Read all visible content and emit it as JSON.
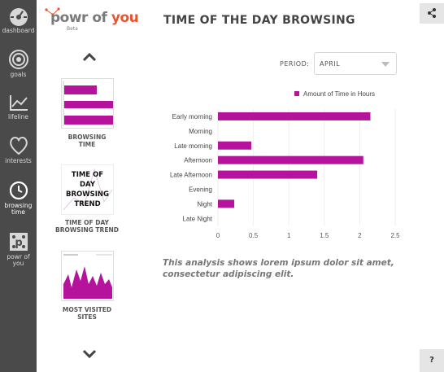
{
  "sidebar": {
    "items": [
      {
        "label": "dashboard",
        "icon": "dashboard-icon"
      },
      {
        "label": "goals",
        "icon": "target-icon"
      },
      {
        "label": "lifeline",
        "icon": "line-chart-icon"
      },
      {
        "label": "interests",
        "icon": "heart-icon"
      },
      {
        "label_1": "browsing",
        "label_2": "time",
        "icon": "clock-icon"
      },
      {
        "label_1": "powr of",
        "label_2": "you",
        "icon": "powr-logo-icon"
      }
    ]
  },
  "logo": {
    "text_main": "powr of ",
    "text_accent": "you",
    "beta": "Beta"
  },
  "header": {
    "title": "TIME OF THE DAY BROWSING"
  },
  "thumbnails": [
    {
      "label_1": "BROWSING",
      "label_2": "TIME"
    },
    {
      "overlay_1": "TIME OF",
      "overlay_2": "DAY",
      "overlay_3": "BROWSING",
      "overlay_4": "TREND",
      "label_1": "TIME OF DAY",
      "label_2": "BROWSING TREND"
    },
    {
      "label_1": "MOST VISITED",
      "label_2": "SITES"
    }
  ],
  "period": {
    "label": "PERIOD:",
    "value": "APRIL"
  },
  "help": {
    "label": "?"
  },
  "colors": {
    "bar": "#b5139b",
    "sidebar": "#4a4a4a",
    "accent": "#e8542e"
  },
  "chart_data": {
    "type": "bar",
    "orientation": "horizontal",
    "title": "",
    "legend": "Amount of Time in Hours",
    "categories": [
      "Early morning",
      "Morning",
      "Late morning",
      "Afternoon",
      "Late Afternoon",
      "Evening",
      "Night",
      "Late Night"
    ],
    "values": [
      2.15,
      0,
      0.47,
      2.05,
      1.4,
      0,
      0.23,
      0
    ],
    "xlim": [
      0,
      2.5
    ],
    "xticks": [
      "0",
      "0.5",
      "1",
      "1.5",
      "2",
      "2.5"
    ]
  },
  "caption": "This analysis shows lorem ipsum dolor sit amet, consectetur adipiscing elit."
}
